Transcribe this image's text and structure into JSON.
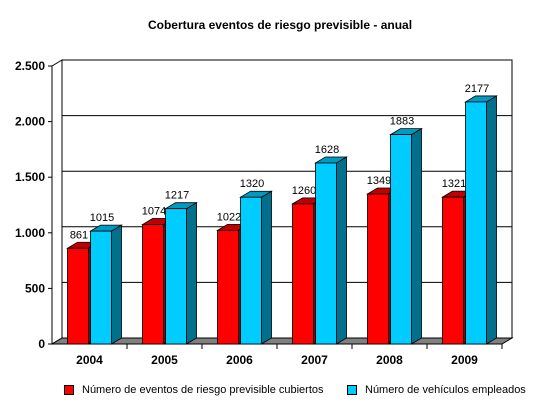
{
  "chart_data": {
    "type": "bar",
    "title": "Cobertura eventos de riesgo previsible - anual",
    "categories": [
      "2004",
      "2005",
      "2006",
      "2007",
      "2008",
      "2009"
    ],
    "series": [
      {
        "name": "Número de eventos de riesgo previsible cubiertos",
        "values": [
          861,
          1074,
          1022,
          1260,
          1349,
          1321
        ],
        "color": "#ff0000"
      },
      {
        "name": "Número de vehículos empleados",
        "values": [
          1015,
          1217,
          1320,
          1628,
          1883,
          2177
        ],
        "color": "#00ccff"
      }
    ],
    "ylim": [
      0,
      2500
    ],
    "yticks": [
      0,
      500,
      1000,
      1500,
      2000,
      2500
    ],
    "ytick_labels": [
      "0",
      "500",
      "1.000",
      "1.500",
      "2.000",
      "2.500"
    ],
    "grid": true,
    "legend_position": "bottom",
    "style": "3d-column"
  }
}
